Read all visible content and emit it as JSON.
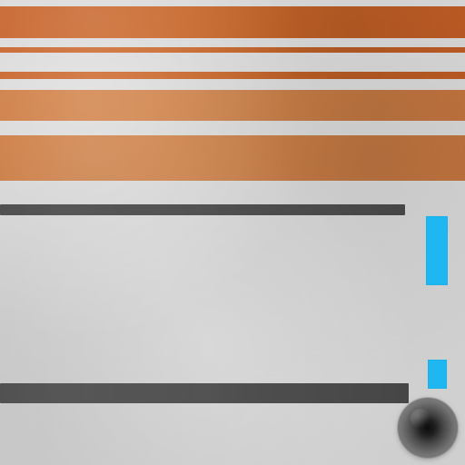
{
  "game": {
    "colors": {
      "background": "#d2d2d2",
      "orange_primary": "#ee7a30",
      "orange_secondary": "#f39a57",
      "platform_dark": "#4a4a4a",
      "marker_blue": "#1fb7f2",
      "ball_black": "#000000"
    },
    "elements": {
      "orange_stripes": [
        "stripe-1",
        "stripe-2",
        "stripe-3",
        "stripe-4",
        "stripe-5"
      ],
      "platforms": [
        "platform-top",
        "platform-bottom"
      ],
      "markers": [
        "blue-marker-tall",
        "blue-marker-small"
      ],
      "player": "ball"
    }
  }
}
